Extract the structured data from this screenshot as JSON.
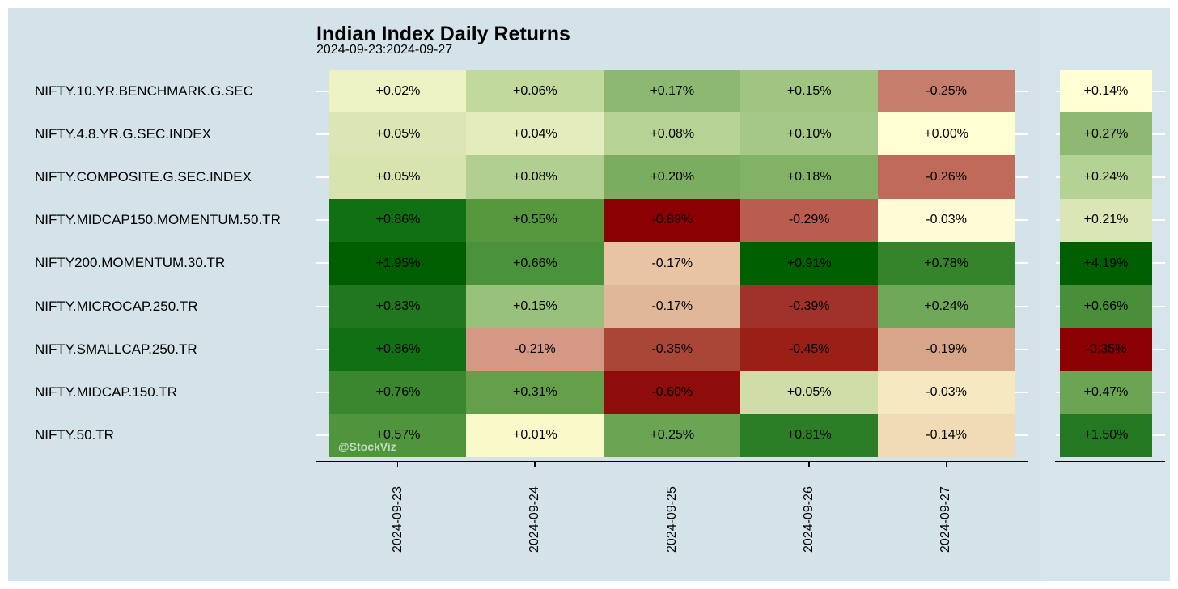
{
  "chart_data": {
    "type": "heatmap",
    "title": "Indian Index Daily Returns",
    "subtitle": "2024-09-23:2024-09-27",
    "watermark": "@StockViz",
    "rows": [
      "NIFTY.10.YR.BENCHMARK.G.SEC",
      "NIFTY.4.8.YR.G.SEC.INDEX",
      "NIFTY.COMPOSITE.G.SEC.INDEX",
      "NIFTY.MIDCAP150.MOMENTUM.50.TR",
      "NIFTY200.MOMENTUM.30.TR",
      "NIFTY.MICROCAP.250.TR",
      "NIFTY.SMALLCAP.250.TR",
      "NIFTY.MIDCAP.150.TR",
      "NIFTY.50.TR"
    ],
    "columns": [
      "2024-09-23",
      "2024-09-24",
      "2024-09-25",
      "2024-09-26",
      "2024-09-27"
    ],
    "values": [
      [
        0.02,
        0.06,
        0.17,
        0.15,
        -0.25
      ],
      [
        0.05,
        0.04,
        0.08,
        0.1,
        0.0
      ],
      [
        0.05,
        0.08,
        0.2,
        0.18,
        -0.26
      ],
      [
        0.86,
        0.55,
        -0.89,
        -0.29,
        -0.03
      ],
      [
        1.95,
        0.66,
        -0.17,
        0.91,
        0.78
      ],
      [
        0.83,
        0.15,
        -0.17,
        -0.39,
        0.24
      ],
      [
        0.86,
        -0.21,
        -0.35,
        -0.45,
        -0.19
      ],
      [
        0.76,
        0.31,
        -0.6,
        0.05,
        -0.03
      ],
      [
        0.57,
        0.01,
        0.25,
        0.81,
        -0.14
      ]
    ],
    "labels": [
      [
        "+0.02%",
        "+0.06%",
        "+0.17%",
        "+0.15%",
        "-0.25%"
      ],
      [
        "+0.05%",
        "+0.04%",
        "+0.08%",
        "+0.10%",
        "+0.00%"
      ],
      [
        "+0.05%",
        "+0.08%",
        "+0.20%",
        "+0.18%",
        "-0.26%"
      ],
      [
        "+0.86%",
        "+0.55%",
        "-0.89%",
        "-0.29%",
        "-0.03%"
      ],
      [
        "+1.95%",
        "+0.66%",
        "-0.17%",
        "+0.91%",
        "+0.78%"
      ],
      [
        "+0.83%",
        "+0.15%",
        "-0.17%",
        "-0.39%",
        "+0.24%"
      ],
      [
        "+0.86%",
        "-0.21%",
        "-0.35%",
        "-0.45%",
        "-0.19%"
      ],
      [
        "+0.76%",
        "+0.31%",
        "-0.60%",
        "+0.05%",
        "-0.03%"
      ],
      [
        "+0.57%",
        "+0.01%",
        "+0.25%",
        "+0.81%",
        "-0.14%"
      ]
    ],
    "total_values": [
      0.14,
      0.27,
      0.24,
      0.21,
      4.19,
      0.66,
      -0.35,
      0.47,
      1.5
    ],
    "total_labels": [
      "+0.14%",
      "+0.27%",
      "+0.24%",
      "+0.21%",
      "+4.19%",
      "+0.66%",
      "-0.35%",
      "+0.47%",
      "+1.50%"
    ],
    "cell_colors": [
      [
        "#ecf2c1",
        "#c2d99d",
        "#8cb871",
        "#a0c581",
        "#c67e6c"
      ],
      [
        "#dce6b4",
        "#e4ecbd",
        "#b6d294",
        "#a5c787",
        "#fffdd2"
      ],
      [
        "#d8e4b0",
        "#b0cf90",
        "#7aad60",
        "#82b266",
        "#c06b5a"
      ],
      [
        "#116f14",
        "#57983f",
        "#8b0000",
        "#b95d4e",
        "#fffbd6"
      ],
      [
        "#005d00",
        "#4a923b",
        "#e8c3a4",
        "#005f00",
        "#35832a"
      ],
      [
        "#217620",
        "#98c17b",
        "#e0b797",
        "#a1322a",
        "#70a85a"
      ],
      [
        "#117013",
        "#d59884",
        "#aa4638",
        "#9a1f17",
        "#d7a689"
      ],
      [
        "#3a8730",
        "#659f4a",
        "#8e0d0a",
        "#cfdea9",
        "#f6e9c1"
      ],
      [
        "#4e953d",
        "#f9f9ca",
        "#6aa553",
        "#2b7e25",
        "#f1dbb5"
      ]
    ],
    "total_colors": [
      "#fffed2",
      "#8fb873",
      "#b5d295",
      "#dae6b5",
      "#005f00",
      "#498f3a",
      "#8b0000",
      "#6ba453",
      "#257822"
    ],
    "legend": "none"
  }
}
